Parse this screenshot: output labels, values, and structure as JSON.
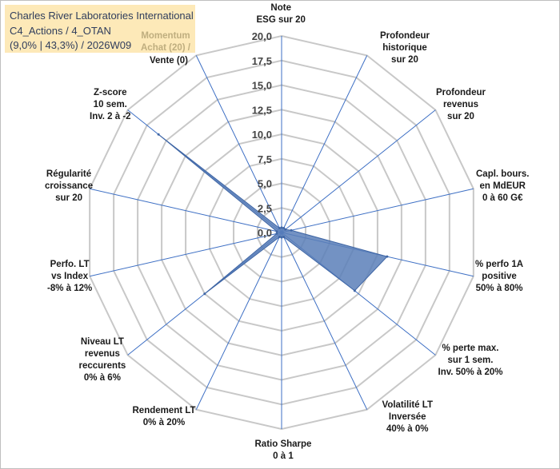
{
  "chart_data": {
    "type": "radar",
    "title_lines": [
      "Charles River Laboratories International",
      "C4_Actions / 4_OTAN",
      "(9,0% | 43,3%) / 2026W09"
    ],
    "momentum_label": [
      "Momentum",
      "Achat (20) /"
    ],
    "rlim": [
      0,
      20
    ],
    "radial_ticks": [
      "0,0",
      "2,5",
      "5,0",
      "7,5",
      "10,0",
      "12,5",
      "15,0",
      "17,5",
      "20,0"
    ],
    "axes": [
      {
        "label": [
          "Note",
          "ESG sur 20"
        ],
        "value": 0.5
      },
      {
        "label": [
          "Profondeur",
          "historique",
          "sur 20"
        ],
        "value": 0.5
      },
      {
        "label": [
          "Profondeur",
          "revenus",
          "sur 20"
        ],
        "value": 0.5
      },
      {
        "label": [
          "Capl. bours.",
          "en MdEUR",
          "0 à 60 G€"
        ],
        "value": 1.0
      },
      {
        "label": [
          "% perfo 1A",
          "positive",
          "50% à 80%"
        ],
        "value": 11.0
      },
      {
        "label": [
          "% perte max.",
          "sur 1 sem.",
          "Inv. 50% à 20%"
        ],
        "value": 9.5
      },
      {
        "label": [
          "Volatilité LT",
          "Inversée",
          "40% à 0%"
        ],
        "value": 0.5
      },
      {
        "label": [
          "Ratio Sharpe",
          "0 à 1"
        ],
        "value": 0.5
      },
      {
        "label": [
          "Rendement LT",
          "0% à 20%"
        ],
        "value": 0.5
      },
      {
        "label": [
          "Niveau LT",
          "revenus",
          "reccurents",
          "0% à 6%"
        ],
        "value": 10.0
      },
      {
        "label": [
          "Perfo. LT",
          "vs Index",
          "-8% à 12%"
        ],
        "value": 0.5
      },
      {
        "label": [
          "Régularité",
          "croissance",
          "sur 20"
        ],
        "value": 0.5
      },
      {
        "label": [
          "Z-score",
          "10 sem.",
          "Inv. 2 à -2"
        ],
        "value": 16.0
      },
      {
        "label": [
          "Vente (0)"
        ],
        "value": 0.5
      }
    ],
    "colors": {
      "fill": "#5a7fb8",
      "stroke": "#3f66a5",
      "grid": "#c8c8c8",
      "spoke": "#3d6fc4"
    }
  }
}
